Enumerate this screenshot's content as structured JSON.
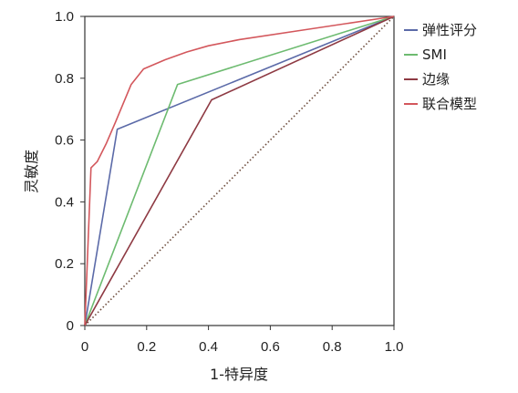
{
  "chart_data": {
    "type": "line",
    "xlabel": "1-特异度",
    "ylabel": "灵敏度",
    "xlim": [
      0,
      1
    ],
    "ylim": [
      0,
      1
    ],
    "x_ticks": [
      "0",
      "0.2",
      "0.4",
      "0.6",
      "0.8",
      "1.0"
    ],
    "y_ticks": [
      "0",
      "0.2",
      "0.4",
      "0.6",
      "0.8",
      "1.0"
    ],
    "legend_position": "right",
    "grid": false,
    "series": [
      {
        "name": "弹性评分",
        "color": "#5b6aa8",
        "points": [
          [
            0,
            0
          ],
          [
            0.105,
            0.635
          ],
          [
            1.0,
            1.0
          ]
        ]
      },
      {
        "name": "SMI",
        "color": "#6dbb70",
        "points": [
          [
            0,
            0
          ],
          [
            0.3,
            0.78
          ],
          [
            1.0,
            1.0
          ]
        ]
      },
      {
        "name": "边缘",
        "color": "#8e3a43",
        "points": [
          [
            0,
            0
          ],
          [
            0.41,
            0.73
          ],
          [
            1.0,
            1.0
          ]
        ]
      },
      {
        "name": "联合模型",
        "color": "#d3575c",
        "points": [
          [
            0,
            0
          ],
          [
            0.02,
            0.51
          ],
          [
            0.04,
            0.53
          ],
          [
            0.07,
            0.59
          ],
          [
            0.1,
            0.66
          ],
          [
            0.15,
            0.78
          ],
          [
            0.19,
            0.83
          ],
          [
            0.26,
            0.86
          ],
          [
            0.33,
            0.885
          ],
          [
            0.4,
            0.905
          ],
          [
            0.5,
            0.925
          ],
          [
            0.7,
            0.955
          ],
          [
            1.0,
            1.0
          ]
        ]
      }
    ],
    "reference_line": {
      "points": [
        [
          0,
          0
        ],
        [
          1,
          1
        ]
      ],
      "color": "#6b4a3a",
      "style": "dotted"
    }
  }
}
